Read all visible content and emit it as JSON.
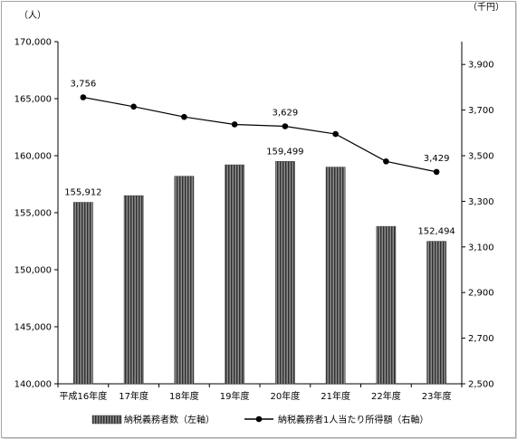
{
  "chart_data": {
    "type": "bar",
    "categories": [
      "平成16年度",
      "17年度",
      "18年度",
      "19年度",
      "20年度",
      "21年度",
      "22年度",
      "23年度"
    ],
    "series": [
      {
        "name": "納税義務者数（左軸）",
        "type": "bar",
        "axis": "left",
        "values": [
          155912,
          156500,
          158200,
          159200,
          159499,
          159000,
          153800,
          152494
        ],
        "color": "#595959"
      },
      {
        "name": "納税義務者1人当たり所得額（右軸）",
        "type": "line",
        "axis": "right",
        "values": [
          3756,
          3715,
          3670,
          3637,
          3629,
          3595,
          3475,
          3429
        ],
        "color": "#000000"
      }
    ],
    "left_axis": {
      "unit": "（人）",
      "ylim": [
        140000,
        170000
      ],
      "ticks": [
        "140,000",
        "145,000",
        "150,000",
        "155,000",
        "160,000",
        "165,000",
        "170,000"
      ]
    },
    "right_axis": {
      "unit": "（千円）",
      "ylim": [
        2500,
        4000
      ],
      "ticks": [
        "2,500",
        "2,700",
        "2,900",
        "3,100",
        "3,300",
        "3,500",
        "3,700",
        "3,900"
      ]
    },
    "data_labels": {
      "bar": [
        {
          "index": 0,
          "text": "155,912"
        },
        {
          "index": 4,
          "text": "159,499"
        },
        {
          "index": 7,
          "text": "152,494"
        }
      ],
      "line": [
        {
          "index": 0,
          "text": "3,756"
        },
        {
          "index": 4,
          "text": "3,629"
        },
        {
          "index": 7,
          "text": "3,429"
        }
      ]
    },
    "grid": false,
    "legend_position": "bottom"
  }
}
